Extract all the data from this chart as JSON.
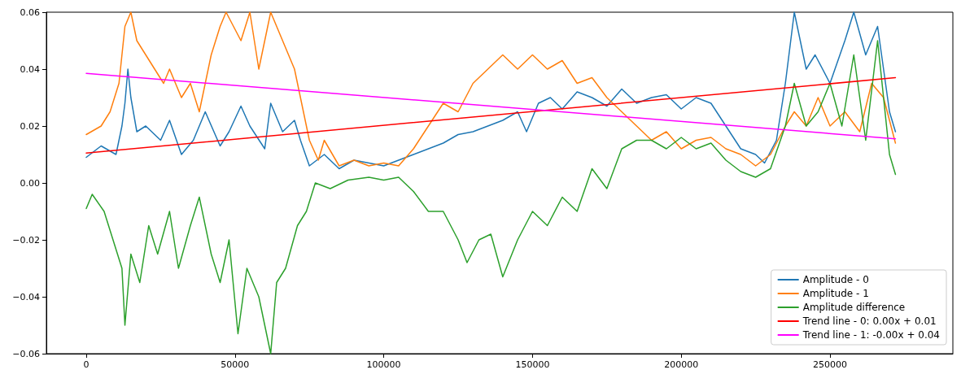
{
  "chart_data": {
    "type": "line",
    "xlim": [
      -13400,
      291300
    ],
    "ylim": [
      -0.06,
      0.06
    ],
    "xticks": [
      0,
      50000,
      100000,
      150000,
      200000,
      250000
    ],
    "yticks": [
      {
        "value": -0.06,
        "label": "−0.06"
      },
      {
        "value": -0.04,
        "label": "−0.04"
      },
      {
        "value": -0.02,
        "label": "−0.02"
      },
      {
        "value": 0,
        "label": "0.00"
      },
      {
        "value": 0.02,
        "label": "0.02"
      },
      {
        "value": 0.04,
        "label": "0.04"
      },
      {
        "value": 0.06,
        "label": "0.06"
      }
    ],
    "grid": false,
    "legend": "bottom right",
    "marker": "none",
    "line_style": "solid",
    "series": [
      {
        "name": "Amplitude - 0",
        "color": "#1f77b4",
        "x": [
          0,
          5000,
          10000,
          12000,
          13000,
          14000,
          15000,
          17000,
          20000,
          25000,
          28000,
          32000,
          36000,
          40000,
          45000,
          48000,
          52000,
          55000,
          60000,
          62000,
          66000,
          70000,
          72000,
          75000,
          80000,
          85000,
          90000,
          95000,
          100000,
          105000,
          110000,
          115000,
          120000,
          125000,
          130000,
          135000,
          140000,
          145000,
          148000,
          152000,
          156000,
          160000,
          165000,
          170000,
          175000,
          180000,
          185000,
          190000,
          195000,
          200000,
          205000,
          210000,
          215000,
          220000,
          225000,
          228000,
          232000,
          235000,
          238000,
          242000,
          245000,
          250000,
          255000,
          258000,
          262000,
          266000,
          268000,
          270000,
          272000
        ],
        "values": [
          0.009,
          0.013,
          0.01,
          0.02,
          0.028,
          0.04,
          0.03,
          0.018,
          0.02,
          0.015,
          0.022,
          0.01,
          0.015,
          0.025,
          0.013,
          0.018,
          0.027,
          0.02,
          0.012,
          0.028,
          0.018,
          0.022,
          0.015,
          0.006,
          0.01,
          0.005,
          0.008,
          0.007,
          0.006,
          0.008,
          0.01,
          0.012,
          0.014,
          0.017,
          0.018,
          0.02,
          0.022,
          0.025,
          0.018,
          0.028,
          0.03,
          0.026,
          0.032,
          0.03,
          0.027,
          0.033,
          0.028,
          0.03,
          0.031,
          0.026,
          0.03,
          0.028,
          0.02,
          0.012,
          0.01,
          0.007,
          0.015,
          0.035,
          0.06,
          0.04,
          0.045,
          0.035,
          0.05,
          0.06,
          0.045,
          0.055,
          0.04,
          0.025,
          0.018
        ]
      },
      {
        "name": "Amplitude - 1",
        "color": "#ff7f0e",
        "x": [
          0,
          5000,
          8000,
          11000,
          13000,
          15000,
          17000,
          20000,
          23000,
          26000,
          28000,
          32000,
          35000,
          38000,
          42000,
          45000,
          47000,
          52000,
          55000,
          58000,
          62000,
          66000,
          70000,
          72000,
          75000,
          78000,
          80000,
          85000,
          90000,
          95000,
          100000,
          105000,
          110000,
          115000,
          120000,
          125000,
          130000,
          135000,
          140000,
          145000,
          150000,
          155000,
          160000,
          165000,
          170000,
          175000,
          180000,
          185000,
          190000,
          195000,
          200000,
          205000,
          210000,
          215000,
          220000,
          225000,
          230000,
          235000,
          238000,
          242000,
          246000,
          250000,
          255000,
          260000,
          264000,
          268000,
          272000
        ],
        "values": [
          0.017,
          0.02,
          0.025,
          0.035,
          0.055,
          0.06,
          0.05,
          0.045,
          0.04,
          0.035,
          0.04,
          0.03,
          0.035,
          0.025,
          0.045,
          0.055,
          0.06,
          0.05,
          0.06,
          0.04,
          0.06,
          0.05,
          0.04,
          0.03,
          0.015,
          0.008,
          0.015,
          0.006,
          0.008,
          0.006,
          0.007,
          0.006,
          0.012,
          0.02,
          0.028,
          0.025,
          0.035,
          0.04,
          0.045,
          0.04,
          0.045,
          0.04,
          0.043,
          0.035,
          0.037,
          0.03,
          0.025,
          0.02,
          0.015,
          0.018,
          0.012,
          0.015,
          0.016,
          0.012,
          0.01,
          0.006,
          0.01,
          0.02,
          0.025,
          0.02,
          0.03,
          0.02,
          0.025,
          0.018,
          0.035,
          0.03,
          0.014
        ]
      },
      {
        "name": "Amplitude difference",
        "color": "#2ca02c",
        "x": [
          0,
          2000,
          6000,
          9000,
          12000,
          13000,
          15000,
          18000,
          21000,
          24000,
          28000,
          31000,
          35000,
          38000,
          42000,
          45000,
          48000,
          51000,
          54000,
          58000,
          62000,
          64000,
          67000,
          71000,
          74000,
          77000,
          82000,
          88000,
          95000,
          100000,
          105000,
          110000,
          115000,
          120000,
          125000,
          128000,
          132000,
          136000,
          140000,
          145000,
          150000,
          155000,
          160000,
          165000,
          170000,
          175000,
          180000,
          185000,
          190000,
          195000,
          200000,
          205000,
          210000,
          215000,
          220000,
          225000,
          230000,
          235000,
          238000,
          242000,
          246000,
          250000,
          254000,
          258000,
          262000,
          266000,
          270000,
          272000
        ],
        "values": [
          -0.009,
          -0.004,
          -0.01,
          -0.02,
          -0.03,
          -0.05,
          -0.025,
          -0.035,
          -0.015,
          -0.025,
          -0.01,
          -0.03,
          -0.015,
          -0.005,
          -0.025,
          -0.035,
          -0.02,
          -0.053,
          -0.03,
          -0.04,
          -0.06,
          -0.035,
          -0.03,
          -0.015,
          -0.01,
          0,
          -0.002,
          0.001,
          0.002,
          0.001,
          0.002,
          -0.003,
          -0.01,
          -0.01,
          -0.02,
          -0.028,
          -0.02,
          -0.018,
          -0.033,
          -0.02,
          -0.01,
          -0.015,
          -0.005,
          -0.01,
          0.005,
          -0.002,
          0.012,
          0.015,
          0.015,
          0.012,
          0.016,
          0.012,
          0.014,
          0.008,
          0.004,
          0.002,
          0.005,
          0.02,
          0.035,
          0.02,
          0.025,
          0.035,
          0.02,
          0.045,
          0.015,
          0.05,
          0.01,
          0.003
        ]
      },
      {
        "name": "Trend line - 0: 0.00x + 0.01",
        "color": "#ff0000",
        "x": [
          0,
          272000
        ],
        "values": [
          0.0105,
          0.037
        ]
      },
      {
        "name": "Trend line - 1: -0.00x + 0.04",
        "color": "#ff00ff",
        "x": [
          0,
          272000
        ],
        "values": [
          0.0385,
          0.0155
        ]
      }
    ]
  }
}
